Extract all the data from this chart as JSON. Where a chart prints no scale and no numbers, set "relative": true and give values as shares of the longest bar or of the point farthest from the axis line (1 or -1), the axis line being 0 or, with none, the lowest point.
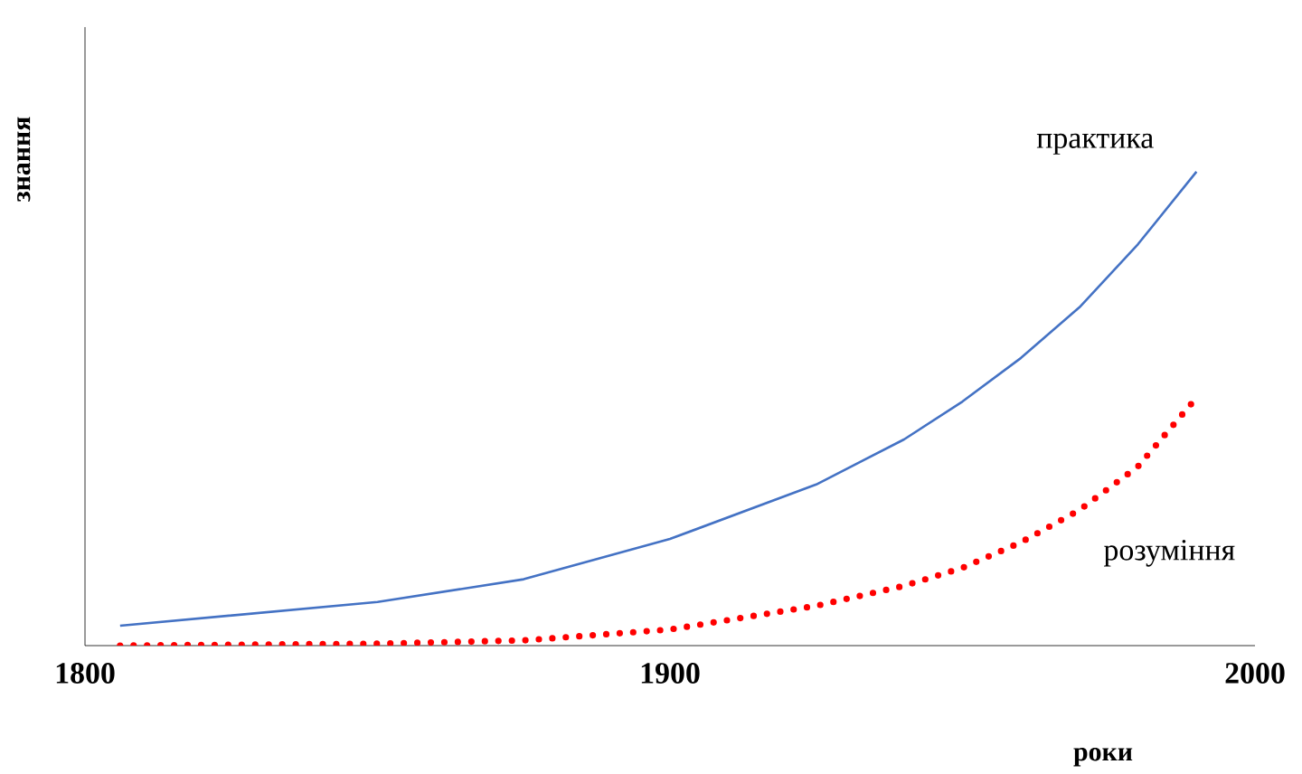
{
  "chart_data": {
    "type": "line",
    "relative": true,
    "xlabel": "роки",
    "ylabel": "знання",
    "xlim": [
      1800,
      2000
    ],
    "xticks": [
      1800,
      1900,
      2000
    ],
    "tick_labels": "x",
    "series": [
      {
        "name": "практика",
        "color": "#4472c4",
        "line_style": "solid",
        "x": [
          1806,
          1850,
          1875,
          1900,
          1925,
          1940,
          1950,
          1960,
          1970,
          1980,
          1990
        ],
        "values": [
          0.042,
          0.092,
          0.14,
          0.225,
          0.34,
          0.435,
          0.515,
          0.607,
          0.714,
          0.847,
          1.0
        ]
      },
      {
        "name": "розуміння",
        "color": "#ff0000",
        "line_style": "dotted",
        "x": [
          1806,
          1850,
          1875,
          1900,
          1925,
          1940,
          1950,
          1960,
          1970,
          1980,
          1990
        ],
        "values": [
          0,
          0.004,
          0.011,
          0.034,
          0.084,
          0.126,
          0.164,
          0.218,
          0.286,
          0.378,
          0.523
        ]
      }
    ]
  }
}
